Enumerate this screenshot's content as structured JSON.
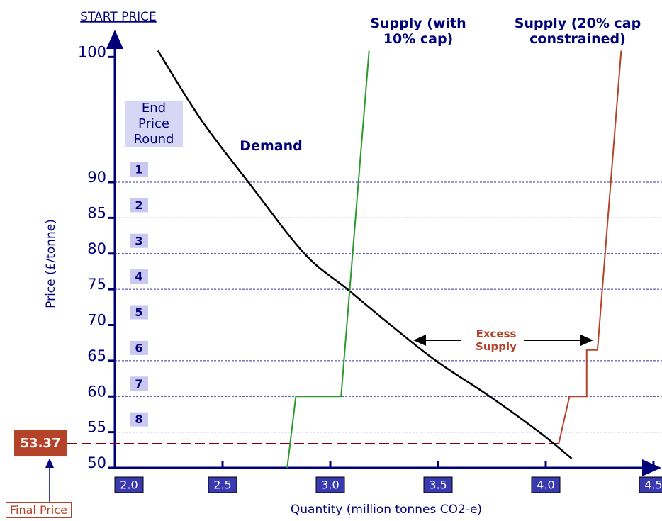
{
  "chart_data": {
    "type": "line",
    "title": "START PRICE",
    "y_label": "Price (£/tonne)",
    "x_label": "Quantity (million tonnes CO2-e)",
    "ylim": [
      50,
      102
    ],
    "yticks": [
      50,
      55,
      60,
      65,
      70,
      75,
      80,
      85,
      90,
      100
    ],
    "xlim": [
      2.0,
      4.5
    ],
    "xticks": [
      {
        "value": 2.0,
        "label": "2.0"
      },
      2.5,
      {
        "value": 3.0,
        "label": "3.0"
      },
      3.5,
      {
        "value": 4.0,
        "label": "4.0"
      },
      4.5
    ],
    "grid": true,
    "series": [
      {
        "name": "Demand",
        "color": "#000000",
        "x": [
          2.2,
          2.4,
          2.62,
          2.88,
          3.08,
          3.28,
          3.49,
          3.74,
          3.97,
          4.12
        ],
        "values": [
          100.5,
          95,
          90,
          80,
          75,
          70,
          65,
          60,
          55,
          51.3
        ]
      },
      {
        "name": "Supply (with 10% cap)",
        "color": "#2a9a2a",
        "x": [
          2.8,
          2.84,
          3.05,
          3.18
        ],
        "values": [
          50,
          60,
          60,
          100.5
        ]
      },
      {
        "name": "Supply (20% cap constrained)",
        "color": "#b5432a",
        "x": [
          4.06,
          4.11,
          4.19,
          4.19,
          4.24,
          4.35
        ],
        "values": [
          53.37,
          60,
          60,
          66.5,
          66.5,
          100.5
        ]
      }
    ],
    "round_header": "End Price Round",
    "rounds": [
      "1",
      "2",
      "3",
      "4",
      "5",
      "6",
      "7",
      "8"
    ],
    "annotation": "Excess Supply",
    "final_price": 53.37,
    "final_price_label": "Final Price"
  }
}
